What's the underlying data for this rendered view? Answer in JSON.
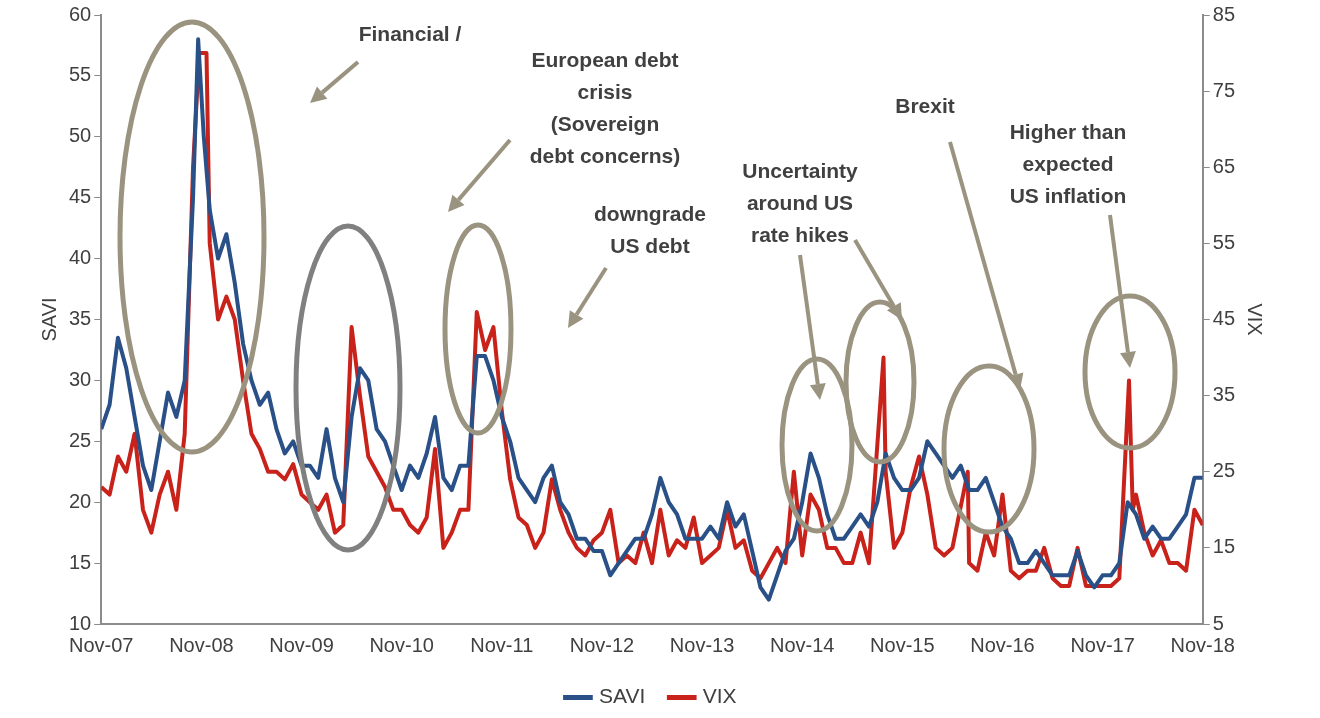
{
  "chart_data": {
    "type": "line",
    "ylabel": "SAVI",
    "y2label": "VIX",
    "xlim": [
      "2007-11",
      "2018-11"
    ],
    "xticks": [
      {
        "value": "2007-11",
        "label": "Nov-07"
      },
      {
        "value": "2008-11",
        "label": "Nov-08"
      },
      {
        "value": "2009-11",
        "label": "Nov-09"
      },
      {
        "value": "2010-11",
        "label": "Nov-10"
      },
      {
        "value": "2011-11",
        "label": "Nov-11"
      },
      {
        "value": "2012-11",
        "label": "Nov-12"
      },
      {
        "value": "2013-11",
        "label": "Nov-13"
      },
      {
        "value": "2014-11",
        "label": "Nov-14"
      },
      {
        "value": "2015-11",
        "label": "Nov-15"
      },
      {
        "value": "2016-11",
        "label": "Nov-16"
      },
      {
        "value": "2017-11",
        "label": "Nov-17"
      },
      {
        "value": "2018-11",
        "label": "Nov-18"
      }
    ],
    "ylim": [
      10,
      60
    ],
    "yticks": [
      10,
      15,
      20,
      25,
      30,
      35,
      40,
      45,
      50,
      55,
      60
    ],
    "y2lim": [
      5,
      85
    ],
    "y2ticks": [
      5,
      15,
      25,
      35,
      45,
      55,
      65,
      75,
      85
    ],
    "grid": false,
    "legend": "bottom",
    "marker": "none",
    "line_style": "solid",
    "annotations": [
      "Financial /",
      "European debt\ncrisis\n(Sovereign\ndebt concerns)",
      "downgrade\nUS debt",
      "Uncertainty\naround US\nrate hikes",
      "Brexit",
      "Higher than\nexpected\nUS inflation"
    ],
    "series": [
      {
        "name": "SAVI",
        "color": "#2a5088",
        "x": [
          "2007-11",
          "2007-12",
          "2008-01",
          "2008-02",
          "2008-03",
          "2008-04",
          "2008-05",
          "2008-06",
          "2008-07",
          "2008-08",
          "2008-09",
          "2008-10",
          "2008-10-20",
          "2008-11-10",
          "2008-12",
          "2009-01",
          "2009-02",
          "2009-03",
          "2009-04",
          "2009-05",
          "2009-06",
          "2009-07",
          "2009-08",
          "2009-09",
          "2009-10",
          "2009-11",
          "2009-12",
          "2010-01",
          "2010-02",
          "2010-03",
          "2010-04",
          "2010-05",
          "2010-06",
          "2010-07",
          "2010-08",
          "2010-09",
          "2010-10",
          "2010-11",
          "2010-12",
          "2011-01",
          "2011-02",
          "2011-03",
          "2011-04",
          "2011-05",
          "2011-06",
          "2011-07",
          "2011-08",
          "2011-09",
          "2011-10",
          "2011-11",
          "2011-12",
          "2012-01",
          "2012-02",
          "2012-03",
          "2012-04",
          "2012-05",
          "2012-06",
          "2012-07",
          "2012-08",
          "2012-09",
          "2012-10",
          "2012-11",
          "2012-12",
          "2013-01",
          "2013-02",
          "2013-03",
          "2013-04",
          "2013-05",
          "2013-06",
          "2013-07",
          "2013-08",
          "2013-09",
          "2013-10",
          "2013-11",
          "2013-12",
          "2014-01",
          "2014-02",
          "2014-03",
          "2014-04",
          "2014-05",
          "2014-06",
          "2014-07",
          "2014-08",
          "2014-09",
          "2014-10",
          "2014-11",
          "2014-12",
          "2015-01",
          "2015-02",
          "2015-03",
          "2015-04",
          "2015-05",
          "2015-06",
          "2015-07",
          "2015-08",
          "2015-09",
          "2015-10",
          "2015-11",
          "2015-12",
          "2016-01",
          "2016-02",
          "2016-03",
          "2016-04",
          "2016-05",
          "2016-06",
          "2016-07",
          "2016-08",
          "2016-09",
          "2016-10",
          "2016-11",
          "2016-12",
          "2017-01",
          "2017-02",
          "2017-03",
          "2017-04",
          "2017-05",
          "2017-06",
          "2017-07",
          "2017-08",
          "2017-09",
          "2017-10",
          "2017-11",
          "2017-12",
          "2018-01",
          "2018-02",
          "2018-03",
          "2018-04",
          "2018-05",
          "2018-06",
          "2018-07",
          "2018-08",
          "2018-09",
          "2018-10",
          "2018-11"
        ],
        "values": [
          26,
          28,
          33.5,
          31,
          27,
          23,
          21,
          25,
          29,
          27,
          30,
          45,
          58,
          50,
          44,
          40,
          42,
          38,
          33,
          30,
          28,
          29,
          26,
          24,
          25,
          23,
          23,
          22,
          26,
          22,
          20,
          27,
          31,
          30,
          26,
          25,
          23,
          21,
          23,
          22,
          24,
          27,
          22,
          21,
          23,
          23,
          32,
          32,
          30,
          27,
          25,
          22,
          21,
          20,
          22,
          23,
          20,
          19,
          17,
          17,
          16,
          16,
          14,
          15,
          16,
          17,
          17,
          19,
          22,
          20,
          19,
          17,
          17,
          17,
          18,
          17,
          20,
          18,
          19,
          16,
          13,
          12,
          14,
          16,
          17,
          20,
          24,
          22,
          19,
          17,
          17,
          18,
          19,
          18,
          20,
          24,
          22,
          21,
          21,
          22,
          25,
          24,
          23,
          22,
          23,
          21,
          21,
          22,
          20,
          18,
          17,
          15,
          15,
          16,
          15,
          14,
          14,
          14,
          16,
          14,
          13,
          14,
          14,
          15,
          20,
          19,
          17,
          18,
          17,
          17,
          18,
          19,
          22,
          22
        ]
      },
      {
        "name": "VIX",
        "color": "#c8221b",
        "axis": "y2",
        "x": [
          "2007-11",
          "2007-12",
          "2008-01",
          "2008-02",
          "2008-03",
          "2008-04",
          "2008-05",
          "2008-06",
          "2008-07",
          "2008-08",
          "2008-09",
          "2008-10",
          "2008-10-24",
          "2008-11-20",
          "2008-12",
          "2009-01",
          "2009-02",
          "2009-03",
          "2009-04",
          "2009-05",
          "2009-06",
          "2009-07",
          "2009-08",
          "2009-09",
          "2009-10",
          "2009-11",
          "2009-12",
          "2010-01",
          "2010-02",
          "2010-03",
          "2010-04",
          "2010-05",
          "2010-06",
          "2010-07",
          "2010-08",
          "2010-09",
          "2010-10",
          "2010-11",
          "2010-12",
          "2011-01",
          "2011-02",
          "2011-03",
          "2011-04",
          "2011-05",
          "2011-06",
          "2011-07",
          "2011-08",
          "2011-09",
          "2011-10",
          "2011-11",
          "2011-12",
          "2012-01",
          "2012-02",
          "2012-03",
          "2012-04",
          "2012-05",
          "2012-06",
          "2012-07",
          "2012-08",
          "2012-09",
          "2012-10",
          "2012-11",
          "2012-12",
          "2013-01",
          "2013-02",
          "2013-03",
          "2013-04",
          "2013-05",
          "2013-06",
          "2013-07",
          "2013-08",
          "2013-09",
          "2013-10",
          "2013-11",
          "2013-12",
          "2014-01",
          "2014-02",
          "2014-03",
          "2014-04",
          "2014-05",
          "2014-06",
          "2014-07",
          "2014-08",
          "2014-09",
          "2014-10",
          "2014-11",
          "2014-12",
          "2015-01",
          "2015-02",
          "2015-03",
          "2015-04",
          "2015-05",
          "2015-06",
          "2015-07",
          "2015-08-24",
          "2015-09",
          "2015-10",
          "2015-11",
          "2015-12",
          "2016-01",
          "2016-02",
          "2016-03",
          "2016-04",
          "2016-05",
          "2016-06-27",
          "2016-07",
          "2016-08",
          "2016-09",
          "2016-10",
          "2016-11",
          "2016-12",
          "2017-01",
          "2017-02",
          "2017-03",
          "2017-04",
          "2017-05",
          "2017-06",
          "2017-07",
          "2017-08",
          "2017-09",
          "2017-10",
          "2017-11",
          "2017-12",
          "2018-01",
          "2018-02-06",
          "2018-02-20",
          "2018-03",
          "2018-04",
          "2018-05",
          "2018-06",
          "2018-07",
          "2018-08",
          "2018-09",
          "2018-10",
          "2018-11"
        ],
        "values": [
          23,
          22,
          27,
          25,
          30,
          20,
          17,
          22,
          25,
          20,
          30,
          65,
          80,
          80,
          55,
          45,
          48,
          45,
          37,
          30,
          28,
          25,
          25,
          24,
          26,
          22,
          21,
          20,
          22,
          17,
          18,
          44,
          35,
          27,
          25,
          23,
          20,
          20,
          18,
          17,
          19,
          28,
          15,
          17,
          20,
          20,
          46,
          41,
          44,
          33,
          24,
          19,
          18,
          15,
          17,
          24,
          20,
          17,
          15,
          14,
          16,
          17,
          20,
          13,
          14,
          13,
          17,
          13,
          20,
          14,
          16,
          15,
          19,
          13,
          14,
          15,
          20,
          15,
          16,
          12,
          11,
          13,
          15,
          13,
          25,
          14,
          22,
          20,
          15,
          15,
          13,
          13,
          17,
          13,
          40,
          25,
          15,
          17,
          23,
          27,
          22,
          15,
          14,
          15,
          25,
          13,
          12,
          17,
          14,
          22,
          12,
          11,
          12,
          12,
          15,
          11,
          10,
          10,
          15,
          10,
          10,
          10,
          10,
          11,
          37,
          20,
          22,
          17,
          14,
          16,
          13,
          13,
          12,
          20,
          18
        ]
      }
    ]
  }
}
